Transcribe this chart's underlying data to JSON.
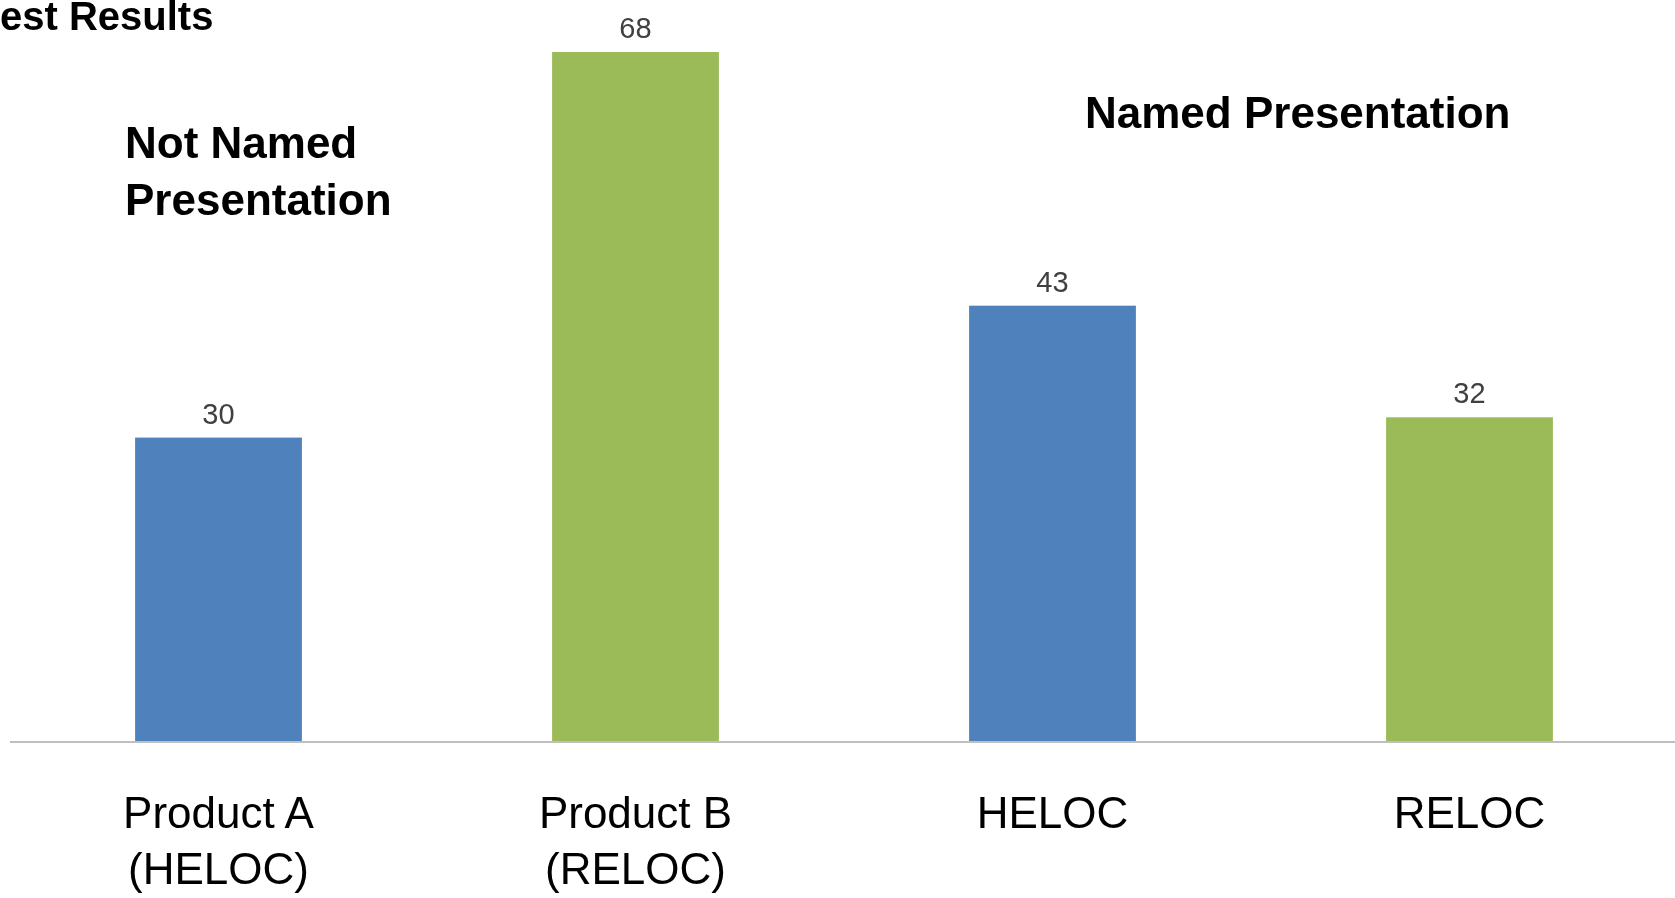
{
  "chart_data": {
    "type": "bar",
    "title": "est Results",
    "categories": [
      "Product A (HELOC)",
      "Product B (RELOC)",
      "HELOC",
      "RELOC"
    ],
    "values": [
      30,
      68,
      43,
      32
    ],
    "colors": [
      "#4f81bd",
      "#9bbb59",
      "#4f81bd",
      "#9bbb59"
    ],
    "data_labels": true,
    "annotations": [
      "Not Named Presentation",
      "Named Presentation"
    ]
  }
}
